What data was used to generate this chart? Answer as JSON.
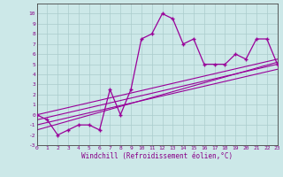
{
  "xlabel": "Windchill (Refroidissement éolien,°C)",
  "x_data": [
    0,
    1,
    2,
    3,
    4,
    5,
    6,
    7,
    8,
    9,
    10,
    11,
    12,
    13,
    14,
    15,
    16,
    17,
    18,
    19,
    20,
    21,
    22,
    23
  ],
  "y_main": [
    0,
    -0.5,
    -2,
    -1.5,
    -1,
    -1,
    -1.5,
    2.5,
    0,
    2.5,
    7.5,
    8.0,
    10,
    9.5,
    7,
    7.5,
    5,
    5,
    5,
    6,
    5.5,
    7.5,
    7.5,
    5
  ],
  "lines": [
    {
      "x": [
        0,
        23
      ],
      "y": [
        0,
        5.5
      ]
    },
    {
      "x": [
        0,
        23
      ],
      "y": [
        -0.5,
        5.0
      ]
    },
    {
      "x": [
        0,
        23
      ],
      "y": [
        -1.0,
        4.5
      ]
    },
    {
      "x": [
        0,
        23
      ],
      "y": [
        -1.5,
        5.2
      ]
    }
  ],
  "main_color": "#990099",
  "bg_color": "#cce8e8",
  "grid_color": "#aacccc",
  "ylim": [
    -3,
    11
  ],
  "xlim": [
    0,
    23
  ],
  "yticks": [
    -3,
    -2,
    -1,
    0,
    1,
    2,
    3,
    4,
    5,
    6,
    7,
    8,
    9,
    10
  ],
  "xticks": [
    0,
    1,
    2,
    3,
    4,
    5,
    6,
    7,
    8,
    9,
    10,
    11,
    12,
    13,
    14,
    15,
    16,
    17,
    18,
    19,
    20,
    21,
    22,
    23
  ]
}
